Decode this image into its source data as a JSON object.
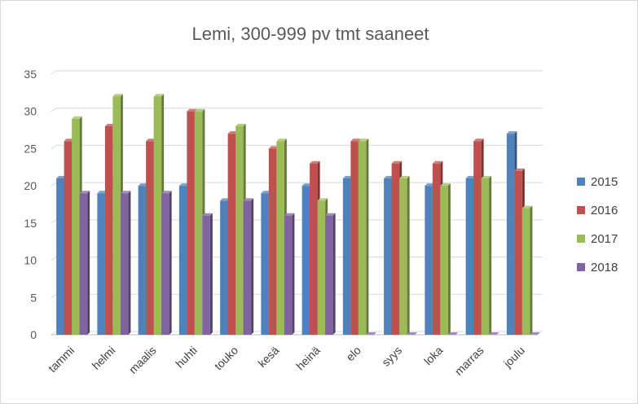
{
  "chart_data": {
    "type": "bar",
    "title": "Lemi, 300-999 pv tmt saaneet",
    "xlabel": "",
    "ylabel": "",
    "ylim": [
      0,
      35
    ],
    "yticks": [
      0,
      5,
      10,
      15,
      20,
      25,
      30,
      35
    ],
    "grid": true,
    "legend_position": "right",
    "categories": [
      "tammi",
      "helmi",
      "maalis",
      "huhti",
      "touko",
      "kesä",
      "heinä",
      "elo",
      "syys",
      "loka",
      "marras",
      "joulu"
    ],
    "series": [
      {
        "name": "2015",
        "color": "#4f81bd",
        "values": [
          21,
          19,
          20,
          20,
          18,
          19,
          20,
          21,
          21,
          20,
          21,
          27
        ]
      },
      {
        "name": "2016",
        "color": "#c0504d",
        "values": [
          26,
          28,
          26,
          30,
          27,
          25,
          23,
          26,
          23,
          23,
          26,
          22
        ]
      },
      {
        "name": "2017",
        "color": "#9bbb59",
        "values": [
          29,
          32,
          32,
          30,
          28,
          26,
          18,
          26,
          21,
          20,
          21,
          17
        ]
      },
      {
        "name": "2018",
        "color": "#8064a2",
        "values": [
          19,
          19,
          19,
          16,
          18,
          16,
          16,
          0,
          0,
          0,
          0,
          0
        ]
      }
    ]
  }
}
